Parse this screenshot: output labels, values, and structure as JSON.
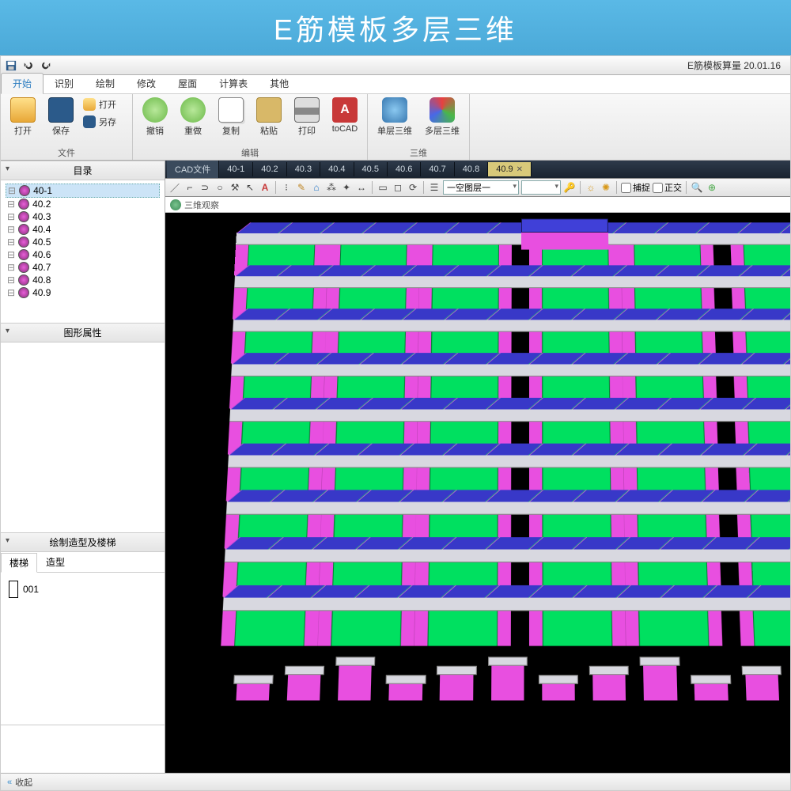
{
  "banner": "E筋模板多层三维",
  "app_title": "E筋模板算量 20.01.16",
  "ribbon_tabs": [
    "开始",
    "识别",
    "绘制",
    "修改",
    "屋面",
    "计算表",
    "其他"
  ],
  "ribbon_active": 0,
  "qat": {
    "save": "保存",
    "undo": "撤销",
    "redo": "重做"
  },
  "groups": {
    "file": {
      "label": "文件",
      "open": "打开",
      "save": "保存",
      "open2": "打开",
      "saveas": "另存"
    },
    "edit": {
      "label": "编辑",
      "undo": "撤销",
      "redo": "重做",
      "copy": "复制",
      "paste": "粘贴",
      "print": "打印",
      "tocad": "toCAD"
    },
    "view3d": {
      "label": "三维",
      "single": "单层三维",
      "multi": "多层三维"
    }
  },
  "sidebar": {
    "catalog": "目录",
    "items": [
      "40-1",
      "40.2",
      "40.3",
      "40.4",
      "40.5",
      "40.6",
      "40.7",
      "40.8",
      "40.9"
    ],
    "selected": 0,
    "props": "图形属性",
    "model": "绘制造型及楼梯",
    "tabs": [
      "楼梯",
      "造型"
    ],
    "shape": "001"
  },
  "doctabs": {
    "first": "CAD文件",
    "tabs": [
      "40-1",
      "40.2",
      "40.3",
      "40.4",
      "40.5",
      "40.6",
      "40.7",
      "40.8",
      "40.9"
    ],
    "active": 8
  },
  "toolbar2": {
    "layer_label": "一空图层一",
    "catch": "捕捉",
    "ortho": "正交"
  },
  "viewer": {
    "title": "三维观察"
  },
  "footer": {
    "collapse": "收起"
  },
  "colors": {
    "slab": "#d8d8e0",
    "slab_top": "#3838c8",
    "column": "#e84fe0",
    "beam": "#00e060",
    "bg": "#000000"
  },
  "building": {
    "floors": 9,
    "segments": 6,
    "piers": [
      4,
      12,
      20,
      28,
      36,
      44,
      52,
      60,
      68,
      76,
      84,
      92
    ]
  }
}
